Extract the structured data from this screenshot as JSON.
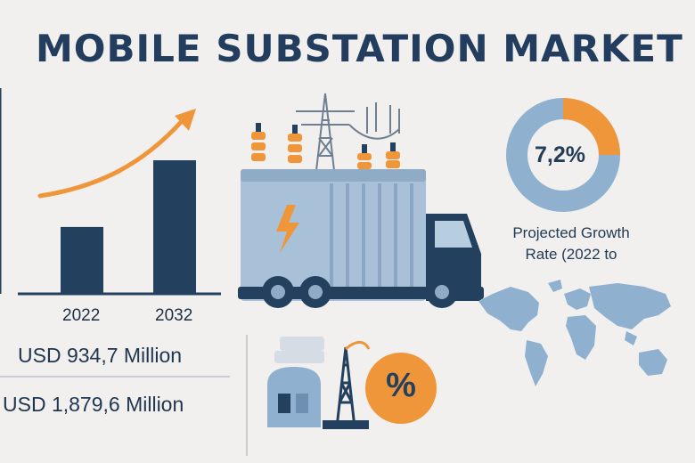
{
  "title": "MOBILE SUBSTATION MARKET",
  "chart_data": {
    "type": "bar",
    "categories": [
      "2022",
      "2032"
    ],
    "values": [
      934.7,
      1879.6
    ],
    "value_labels": [
      "USD 934,7 Million",
      "USD 1,879,6 Million"
    ],
    "title": "",
    "xlabel": "",
    "ylabel": ""
  },
  "cagr": {
    "value": 7.2,
    "label": "7,2%",
    "caption_line1": "Projected Growth",
    "caption_line2": "Rate (2022 to"
  },
  "badge": {
    "symbol": "%"
  },
  "colors": {
    "navy": "#23405f",
    "orange": "#f0963a",
    "steel_blue": "#8fb0cf"
  },
  "icons": [
    "growth-arrow-icon",
    "mobile-substation-truck-icon",
    "lightning-bolt-icon",
    "world-map-icon",
    "substation-building-icon",
    "transmission-tower-icon",
    "percent-badge-icon"
  ]
}
